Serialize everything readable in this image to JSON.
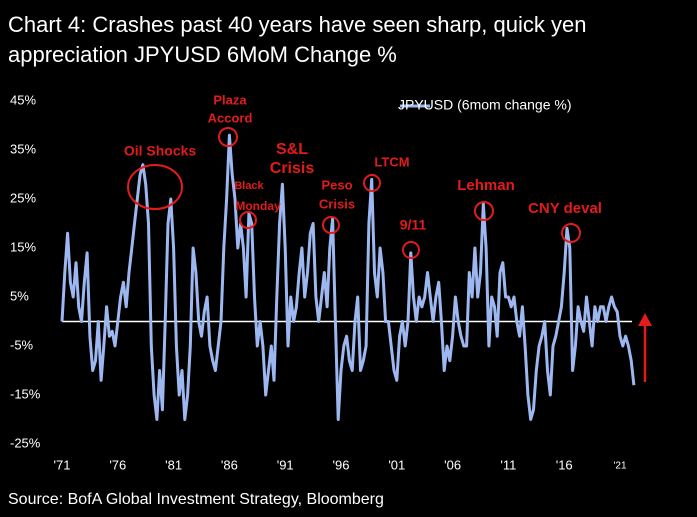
{
  "chart_data": {
    "type": "line",
    "title": "Chart 4: Crashes past 40 years have seen sharp, quick yen appreciation JPYUSD 6MoM Change %",
    "source": "Source: BofA Global Investment Strategy, Bloomberg",
    "xlim": [
      1970.5,
      2023.5
    ],
    "xticks": [
      {
        "value": 1971,
        "label": "'71"
      },
      {
        "value": 1976,
        "label": "'76"
      },
      {
        "value": 1981,
        "label": "'81"
      },
      {
        "value": 1986,
        "label": "'86"
      },
      {
        "value": 1991,
        "label": "'91"
      },
      {
        "value": 1996,
        "label": "'96"
      },
      {
        "value": 2001,
        "label": "'01"
      },
      {
        "value": 2006,
        "label": "'06"
      },
      {
        "value": 2011,
        "label": "'11"
      },
      {
        "value": 2016,
        "label": "'16"
      },
      {
        "value": 2021,
        "label": "'21"
      }
    ],
    "ylim": [
      -25,
      45
    ],
    "yticks": [
      {
        "value": -25,
        "label": "-25%"
      },
      {
        "value": -15,
        "label": "-15%"
      },
      {
        "value": -5,
        "label": "-5%"
      },
      {
        "value": 5,
        "label": "5%"
      },
      {
        "value": 15,
        "label": "15%"
      },
      {
        "value": 25,
        "label": "25%"
      },
      {
        "value": 35,
        "label": "35%"
      },
      {
        "value": 45,
        "label": "45%"
      }
    ],
    "x": [
      1971,
      1971.25,
      1971.5,
      1971.75,
      1972,
      1972.25,
      1972.5,
      1972.75,
      1973,
      1973.25,
      1973.5,
      1973.75,
      1974,
      1974.25,
      1974.5,
      1974.75,
      1975,
      1975.25,
      1975.5,
      1975.75,
      1976,
      1976.25,
      1976.5,
      1976.75,
      1977,
      1977.25,
      1977.5,
      1977.75,
      1978,
      1978.25,
      1978.5,
      1978.75,
      1979,
      1979.25,
      1979.5,
      1979.75,
      1980,
      1980.25,
      1980.5,
      1980.75,
      1981,
      1981.25,
      1981.5,
      1981.75,
      1982,
      1982.25,
      1982.5,
      1982.75,
      1983,
      1983.25,
      1983.5,
      1983.75,
      1984,
      1984.25,
      1984.5,
      1984.75,
      1985,
      1985.25,
      1985.5,
      1985.75,
      1986,
      1986.25,
      1986.5,
      1986.75,
      1987,
      1987.25,
      1987.5,
      1987.75,
      1988,
      1988.25,
      1988.5,
      1988.75,
      1989,
      1989.25,
      1989.5,
      1989.75,
      1990,
      1990.25,
      1990.5,
      1990.75,
      1991,
      1991.25,
      1991.5,
      1991.75,
      1992,
      1992.25,
      1992.5,
      1992.75,
      1993,
      1993.25,
      1993.5,
      1993.75,
      1994,
      1994.25,
      1994.5,
      1994.75,
      1995,
      1995.25,
      1995.5,
      1995.75,
      1996,
      1996.25,
      1996.5,
      1996.75,
      1997,
      1997.25,
      1997.5,
      1997.75,
      1998,
      1998.25,
      1998.5,
      1998.75,
      1999,
      1999.25,
      1999.5,
      1999.75,
      2000,
      2000.25,
      2000.5,
      2000.75,
      2001,
      2001.25,
      2001.5,
      2001.75,
      2002,
      2002.25,
      2002.5,
      2002.75,
      2003,
      2003.25,
      2003.5,
      2003.75,
      2004,
      2004.25,
      2004.5,
      2004.75,
      2005,
      2005.25,
      2005.5,
      2005.75,
      2006,
      2006.25,
      2006.5,
      2006.75,
      2007,
      2007.25,
      2007.5,
      2007.75,
      2008,
      2008.25,
      2008.5,
      2008.75,
      2009,
      2009.25,
      2009.5,
      2009.75,
      2010,
      2010.25,
      2010.5,
      2010.75,
      2011,
      2011.25,
      2011.5,
      2011.75,
      2012,
      2012.25,
      2012.5,
      2012.75,
      2013,
      2013.25,
      2013.5,
      2013.75,
      2014,
      2014.25,
      2014.5,
      2014.75,
      2015,
      2015.25,
      2015.5,
      2015.75,
      2016,
      2016.25,
      2016.5,
      2016.75,
      2017,
      2017.25,
      2017.5,
      2017.75,
      2018,
      2018.25,
      2018.5,
      2018.75,
      2019,
      2019.25,
      2019.5,
      2019.75,
      2020,
      2020.25,
      2020.5,
      2020.75,
      2021,
      2021.25,
      2021.5,
      2021.75,
      2022,
      2022.25
    ],
    "series": [
      {
        "name": "JPYUSD (6mom change %)",
        "color": "#9db8f0",
        "values": [
          0,
          10,
          18,
          8,
          5,
          12,
          3,
          0,
          8,
          14,
          -3,
          -10,
          -8,
          0,
          -12,
          -5,
          3,
          -3,
          -2,
          -5,
          0,
          5,
          8,
          3,
          10,
          15,
          20,
          25,
          30,
          32,
          28,
          20,
          -5,
          -15,
          -20,
          -10,
          -18,
          0,
          20,
          25,
          15,
          -5,
          -15,
          -10,
          -20,
          -15,
          -5,
          15,
          10,
          0,
          -3,
          2,
          5,
          -5,
          -8,
          -10,
          -5,
          0,
          15,
          25,
          38,
          30,
          25,
          15,
          20,
          15,
          5,
          22,
          20,
          5,
          -5,
          0,
          -5,
          -15,
          -10,
          -5,
          -12,
          5,
          20,
          28,
          15,
          -5,
          5,
          0,
          3,
          10,
          15,
          5,
          10,
          18,
          20,
          5,
          0,
          5,
          10,
          3,
          15,
          21,
          0,
          -20,
          -10,
          -5,
          -3,
          -8,
          -10,
          0,
          5,
          -10,
          -8,
          -5,
          20,
          29,
          10,
          5,
          15,
          10,
          0,
          0,
          -5,
          -10,
          -12,
          -3,
          0,
          -5,
          0,
          14,
          5,
          0,
          5,
          3,
          5,
          10,
          5,
          0,
          5,
          8,
          0,
          -10,
          -5,
          -8,
          -3,
          5,
          0,
          -3,
          -5,
          -5,
          10,
          5,
          15,
          5,
          10,
          24,
          15,
          -5,
          5,
          3,
          -3,
          10,
          12,
          5,
          5,
          3,
          5,
          0,
          -3,
          3,
          -5,
          -15,
          -20,
          -18,
          -10,
          -5,
          -3,
          0,
          -10,
          -15,
          -5,
          -3,
          0,
          3,
          10,
          19,
          15,
          -10,
          -5,
          3,
          0,
          -2,
          5,
          0,
          -5,
          3,
          0,
          3,
          3,
          0,
          3,
          5,
          3,
          2,
          -3,
          -5,
          -3,
          -5,
          -8,
          -13
        ]
      }
    ],
    "annotations": [
      {
        "lines": [
          "Oil Shocks"
        ]
      },
      {
        "lines": [
          "Plaza",
          "Accord"
        ]
      },
      {
        "lines": [
          "S&L",
          "Crisis"
        ]
      },
      {
        "lines": [
          "Black",
          "Monday"
        ]
      },
      {
        "lines": [
          "Peso",
          "Crisis"
        ]
      },
      {
        "lines": [
          "LTCM"
        ]
      },
      {
        "lines": [
          "9/11"
        ]
      },
      {
        "lines": [
          "Lehman"
        ]
      },
      {
        "lines": [
          "CNY deval"
        ]
      }
    ]
  }
}
